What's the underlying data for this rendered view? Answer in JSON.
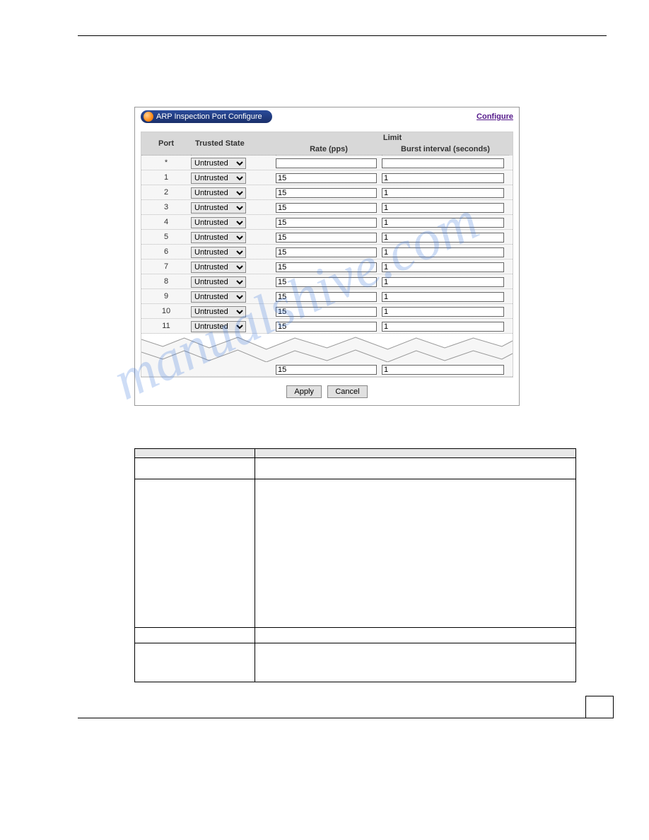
{
  "panel_title": "ARP Inspection Port Configure",
  "configure_link": "Configure",
  "headers": {
    "port": "Port",
    "trusted": "Trusted State",
    "limit": "Limit",
    "rate": "Rate (pps)",
    "burst": "Burst interval (seconds)"
  },
  "option_untrusted": "Untrusted",
  "rows": [
    {
      "port": "*",
      "rate": "",
      "burst": ""
    },
    {
      "port": "1",
      "rate": "15",
      "burst": "1"
    },
    {
      "port": "2",
      "rate": "15",
      "burst": "1"
    },
    {
      "port": "3",
      "rate": "15",
      "burst": "1"
    },
    {
      "port": "4",
      "rate": "15",
      "burst": "1"
    },
    {
      "port": "5",
      "rate": "15",
      "burst": "1"
    },
    {
      "port": "6",
      "rate": "15",
      "burst": "1"
    },
    {
      "port": "7",
      "rate": "15",
      "burst": "1"
    },
    {
      "port": "8",
      "rate": "15",
      "burst": "1"
    },
    {
      "port": "9",
      "rate": "15",
      "burst": "1"
    },
    {
      "port": "10",
      "rate": "15",
      "burst": "1"
    },
    {
      "port": "11",
      "rate": "15",
      "burst": "1"
    }
  ],
  "frag_rate": "15",
  "frag_burst": "1",
  "apply_label": "Apply",
  "cancel_label": "Cancel",
  "watermark_text": "manualshive.com",
  "tear_stroke": "#999999",
  "tear_fill": "#ffffff"
}
